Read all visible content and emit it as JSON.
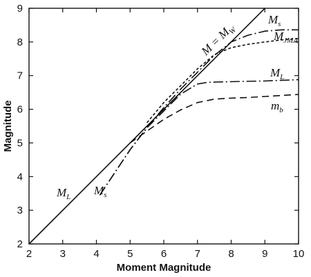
{
  "chart_data": {
    "type": "line",
    "title": "",
    "xlabel": "Moment Magnitude",
    "ylabel": "Magnitude",
    "xlim": [
      2,
      10
    ],
    "ylim": [
      2,
      9
    ],
    "xticks": [
      2,
      3,
      4,
      5,
      6,
      7,
      8,
      9,
      10
    ],
    "yticks": [
      2,
      3,
      4,
      5,
      6,
      7,
      8,
      9
    ],
    "grid": false,
    "legend": "none",
    "series": [
      {
        "name": "M = Mw",
        "dash": "solid",
        "x": [
          2,
          9
        ],
        "y": [
          2,
          9
        ]
      },
      {
        "name": "ML",
        "dash": "dashdot",
        "x": [
          4.1,
          4.6,
          5.0,
          5.5,
          6.0,
          6.5,
          7.0,
          7.3,
          7.6,
          8.0,
          8.5,
          9.0,
          9.5,
          10.0
        ],
        "y": [
          3.45,
          4.2,
          4.8,
          5.45,
          5.95,
          6.45,
          6.75,
          6.8,
          6.81,
          6.82,
          6.83,
          6.84,
          6.86,
          6.88
        ]
      },
      {
        "name": "Ms",
        "dash": "dashdot",
        "x": [
          4.1,
          4.6,
          5.0,
          5.5,
          6.0,
          6.5,
          7.0,
          7.5,
          8.0,
          8.5,
          9.0,
          9.5,
          10.0
        ],
        "y": [
          3.45,
          4.2,
          4.8,
          5.45,
          6.05,
          6.6,
          7.1,
          7.6,
          8.0,
          8.2,
          8.32,
          8.36,
          8.36
        ]
      },
      {
        "name": "MJMA",
        "dash": "shortdash",
        "x": [
          5.5,
          6.0,
          6.5,
          7.0,
          7.5,
          8.0,
          8.5,
          9.0,
          9.5,
          10.0
        ],
        "y": [
          5.6,
          6.2,
          6.7,
          7.2,
          7.62,
          7.83,
          7.93,
          8.0,
          8.06,
          8.1
        ]
      },
      {
        "name": "mb",
        "dash": "longdash",
        "x": [
          5.0,
          5.5,
          6.0,
          6.5,
          7.0,
          7.5,
          8.0,
          8.5,
          9.0,
          9.5,
          10.0
        ],
        "y": [
          5.0,
          5.35,
          5.7,
          5.98,
          6.2,
          6.3,
          6.33,
          6.35,
          6.38,
          6.41,
          6.44
        ]
      }
    ],
    "annotations": {
      "mw_main": "M = M",
      "mw_sub": "W",
      "ms_main": "M",
      "ms_sub": "s",
      "jma_main": "M",
      "jma_sub": "JMA",
      "ml_main": "M",
      "ml_sub": "L",
      "mb_main": "m",
      "mb_sub": "b",
      "ml_low_main": "M",
      "ml_low_sub": "L",
      "ms_low_main": "M",
      "ms_low_sub": "s"
    }
  }
}
